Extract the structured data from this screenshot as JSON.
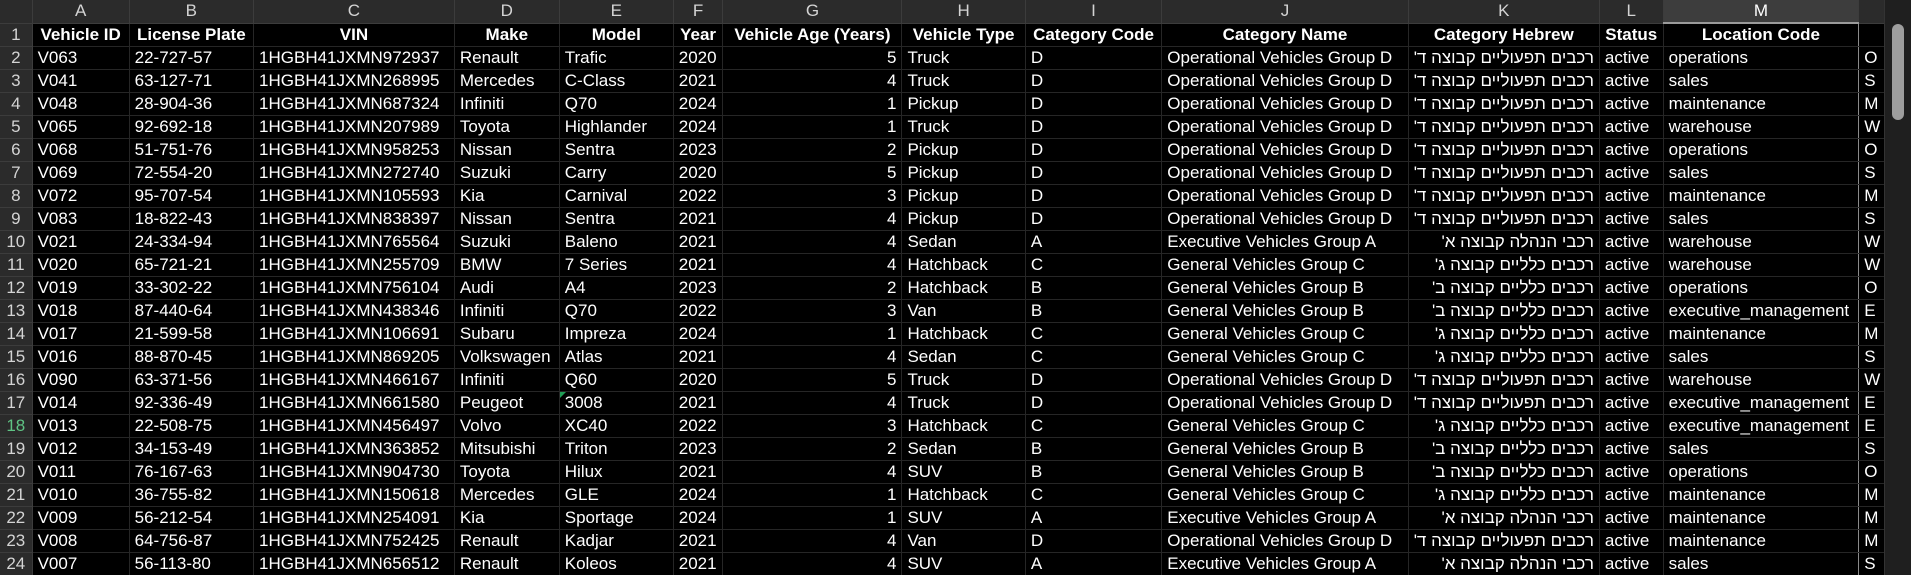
{
  "columns": [
    "A",
    "B",
    "C",
    "D",
    "E",
    "F",
    "G",
    "H",
    "I",
    "J",
    "K",
    "L",
    "M"
  ],
  "selected_column": "M",
  "selected_row": "18",
  "header_row_number": "1",
  "headers": [
    "Vehicle ID",
    "License Plate",
    "VIN",
    "Make",
    "Model",
    "Year",
    "Vehicle Age (Years)",
    "Vehicle Type",
    "Category Code",
    "Category Name",
    "Category Hebrew",
    "Status",
    "Location Code"
  ],
  "rows": [
    {
      "n": "2",
      "c": [
        "V063",
        "22-727-57",
        "1HGBH41JXMN972937",
        "Renault",
        "Trafic",
        "2020",
        "5",
        "Truck",
        "D",
        "Operational Vehicles Group D",
        "רכבים תפעוליים קבוצה ד'",
        "active",
        "operations"
      ],
      "next": "O"
    },
    {
      "n": "3",
      "c": [
        "V041",
        "63-127-71",
        "1HGBH41JXMN268995",
        "Mercedes",
        "C-Class",
        "2021",
        "4",
        "Truck",
        "D",
        "Operational Vehicles Group D",
        "רכבים תפעוליים קבוצה ד'",
        "active",
        "sales"
      ],
      "next": "S"
    },
    {
      "n": "4",
      "c": [
        "V048",
        "28-904-36",
        "1HGBH41JXMN687324",
        "Infiniti",
        "Q70",
        "2024",
        "1",
        "Pickup",
        "D",
        "Operational Vehicles Group D",
        "רכבים תפעוליים קבוצה ד'",
        "active",
        "maintenance"
      ],
      "next": "M"
    },
    {
      "n": "5",
      "c": [
        "V065",
        "92-692-18",
        "1HGBH41JXMN207989",
        "Toyota",
        "Highlander",
        "2024",
        "1",
        "Truck",
        "D",
        "Operational Vehicles Group D",
        "רכבים תפעוליים קבוצה ד'",
        "active",
        "warehouse"
      ],
      "next": "W"
    },
    {
      "n": "6",
      "c": [
        "V068",
        "51-751-76",
        "1HGBH41JXMN958253",
        "Nissan",
        "Sentra",
        "2023",
        "2",
        "Pickup",
        "D",
        "Operational Vehicles Group D",
        "רכבים תפעוליים קבוצה ד'",
        "active",
        "operations"
      ],
      "next": "O"
    },
    {
      "n": "7",
      "c": [
        "V069",
        "72-554-20",
        "1HGBH41JXMN272740",
        "Suzuki",
        "Carry",
        "2020",
        "5",
        "Pickup",
        "D",
        "Operational Vehicles Group D",
        "רכבים תפעוליים קבוצה ד'",
        "active",
        "sales"
      ],
      "next": "S"
    },
    {
      "n": "8",
      "c": [
        "V072",
        "95-707-54",
        "1HGBH41JXMN105593",
        "Kia",
        "Carnival",
        "2022",
        "3",
        "Pickup",
        "D",
        "Operational Vehicles Group D",
        "רכבים תפעוליים קבוצה ד'",
        "active",
        "maintenance"
      ],
      "next": "M"
    },
    {
      "n": "9",
      "c": [
        "V083",
        "18-822-43",
        "1HGBH41JXMN838397",
        "Nissan",
        "Sentra",
        "2021",
        "4",
        "Pickup",
        "D",
        "Operational Vehicles Group D",
        "רכבים תפעוליים קבוצה ד'",
        "active",
        "sales"
      ],
      "next": "S"
    },
    {
      "n": "10",
      "c": [
        "V021",
        "24-334-94",
        "1HGBH41JXMN765564",
        "Suzuki",
        "Baleno",
        "2021",
        "4",
        "Sedan",
        "A",
        "Executive Vehicles Group A",
        "רכבי הנהלה קבוצה א'",
        "active",
        "warehouse"
      ],
      "next": "W"
    },
    {
      "n": "11",
      "c": [
        "V020",
        "65-721-21",
        "1HGBH41JXMN255709",
        "BMW",
        "7 Series",
        "2021",
        "4",
        "Hatchback",
        "C",
        "General Vehicles Group C",
        "רכבים כלליים קבוצה ג'",
        "active",
        "warehouse"
      ],
      "next": "W"
    },
    {
      "n": "12",
      "c": [
        "V019",
        "33-302-22",
        "1HGBH41JXMN756104",
        "Audi",
        "A4",
        "2023",
        "2",
        "Hatchback",
        "B",
        "General Vehicles Group B",
        "רכבים כלליים קבוצה ב'",
        "active",
        "operations"
      ],
      "next": "O"
    },
    {
      "n": "13",
      "c": [
        "V018",
        "87-440-64",
        "1HGBH41JXMN438346",
        "Infiniti",
        "Q70",
        "2022",
        "3",
        "Van",
        "B",
        "General Vehicles Group B",
        "רכבים כלליים קבוצה ב'",
        "active",
        "executive_management"
      ],
      "next": "E"
    },
    {
      "n": "14",
      "c": [
        "V017",
        "21-599-58",
        "1HGBH41JXMN106691",
        "Subaru",
        "Impreza",
        "2024",
        "1",
        "Hatchback",
        "C",
        "General Vehicles Group C",
        "רכבים כלליים קבוצה ג'",
        "active",
        "maintenance"
      ],
      "next": "M"
    },
    {
      "n": "15",
      "c": [
        "V016",
        "88-870-45",
        "1HGBH41JXMN869205",
        "Volkswagen",
        "Atlas",
        "2021",
        "4",
        "Sedan",
        "C",
        "General Vehicles Group C",
        "רכבים כלליים קבוצה ג'",
        "active",
        "sales"
      ],
      "next": "S"
    },
    {
      "n": "16",
      "c": [
        "V090",
        "63-371-56",
        "1HGBH41JXMN466167",
        "Infiniti",
        "Q60",
        "2020",
        "5",
        "Truck",
        "D",
        "Operational Vehicles Group D",
        "רכבים תפעוליים קבוצה ד'",
        "active",
        "warehouse"
      ],
      "next": "W"
    },
    {
      "n": "17",
      "c": [
        "V014",
        "92-336-49",
        "1HGBH41JXMN661580",
        "Peugeot",
        "3008",
        "2021",
        "4",
        "Truck",
        "D",
        "Operational Vehicles Group D",
        "רכבים תפעוליים קבוצה ד'",
        "active",
        "executive_management"
      ],
      "next": "E"
    },
    {
      "n": "18",
      "c": [
        "V013",
        "22-508-75",
        "1HGBH41JXMN456497",
        "Volvo",
        "XC40",
        "2022",
        "3",
        "Hatchback",
        "C",
        "General Vehicles Group C",
        "רכבים כלליים קבוצה ג'",
        "active",
        "executive_management"
      ],
      "next": "E"
    },
    {
      "n": "19",
      "c": [
        "V012",
        "34-153-49",
        "1HGBH41JXMN363852",
        "Mitsubishi",
        "Triton",
        "2023",
        "2",
        "Sedan",
        "B",
        "General Vehicles Group B",
        "רכבים כלליים קבוצה ב'",
        "active",
        "sales"
      ],
      "next": "S"
    },
    {
      "n": "20",
      "c": [
        "V011",
        "76-167-63",
        "1HGBH41JXMN904730",
        "Toyota",
        "Hilux",
        "2021",
        "4",
        "SUV",
        "B",
        "General Vehicles Group B",
        "רכבים כלליים קבוצה ב'",
        "active",
        "operations"
      ],
      "next": "O"
    },
    {
      "n": "21",
      "c": [
        "V010",
        "36-755-82",
        "1HGBH41JXMN150618",
        "Mercedes",
        "GLE",
        "2024",
        "1",
        "Hatchback",
        "C",
        "General Vehicles Group C",
        "רכבים כלליים קבוצה ג'",
        "active",
        "maintenance"
      ],
      "next": "M"
    },
    {
      "n": "22",
      "c": [
        "V009",
        "56-212-54",
        "1HGBH41JXMN254091",
        "Kia",
        "Sportage",
        "2024",
        "1",
        "SUV",
        "A",
        "Executive Vehicles Group A",
        "רכבי הנהלה קבוצה א'",
        "active",
        "maintenance"
      ],
      "next": "M"
    },
    {
      "n": "23",
      "c": [
        "V008",
        "64-756-87",
        "1HGBH41JXMN752425",
        "Renault",
        "Kadjar",
        "2021",
        "4",
        "Van",
        "D",
        "Operational Vehicles Group D",
        "רכבים תפעוליים קבוצה ד'",
        "active",
        "maintenance"
      ],
      "next": "M"
    },
    {
      "n": "24",
      "c": [
        "V007",
        "56-113-80",
        "1HGBH41JXMN656512",
        "Renault",
        "Koleos",
        "2021",
        "4",
        "SUV",
        "A",
        "Executive Vehicles Group A",
        "רכבי הנהלה קבוצה א'",
        "active",
        "sales"
      ],
      "next": "S"
    }
  ]
}
